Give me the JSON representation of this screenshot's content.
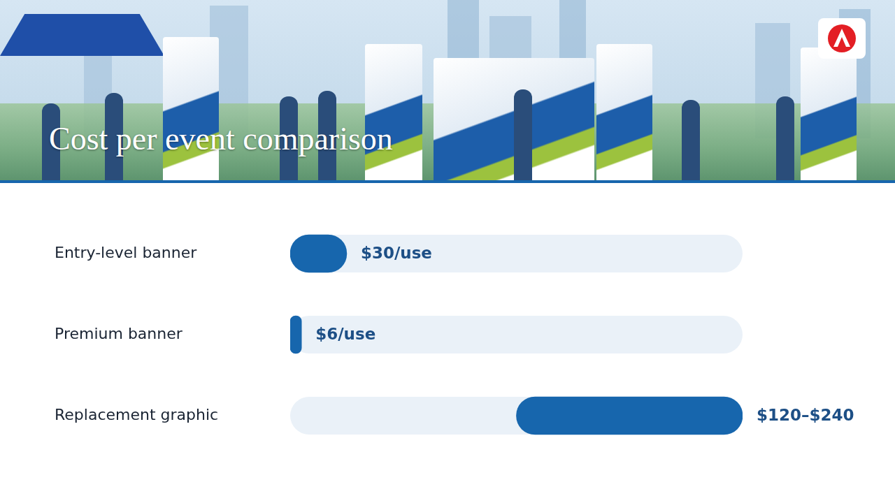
{
  "chart_data": {
    "type": "bar",
    "title": "Cost per event comparison",
    "orientation": "horizontal",
    "categories": [
      "Entry-level banner",
      "Premium banner",
      "Replacement graphic"
    ],
    "values": [
      30,
      6,
      [
        120,
        240
      ]
    ],
    "value_labels": [
      "$30/use",
      "$6/use",
      "$120–$240"
    ],
    "data_labels": true,
    "color": "#1766ad",
    "xlim": [
      0,
      240
    ],
    "grid": false,
    "tick_labels": "y"
  }
}
